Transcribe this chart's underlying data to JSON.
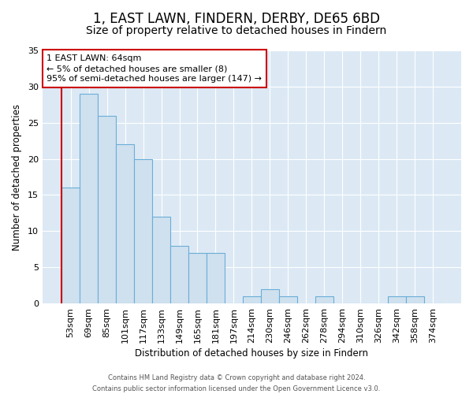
{
  "title": "1, EAST LAWN, FINDERN, DERBY, DE65 6BD",
  "subtitle": "Size of property relative to detached houses in Findern",
  "xlabel": "Distribution of detached houses by size in Findern",
  "ylabel": "Number of detached properties",
  "bar_labels": [
    "53sqm",
    "69sqm",
    "85sqm",
    "101sqm",
    "117sqm",
    "133sqm",
    "149sqm",
    "165sqm",
    "181sqm",
    "197sqm",
    "214sqm",
    "230sqm",
    "246sqm",
    "262sqm",
    "278sqm",
    "294sqm",
    "310sqm",
    "326sqm",
    "342sqm",
    "358sqm",
    "374sqm"
  ],
  "bar_values": [
    16,
    29,
    26,
    22,
    20,
    12,
    8,
    7,
    7,
    0,
    1,
    2,
    1,
    0,
    1,
    0,
    0,
    0,
    1,
    1,
    0
  ],
  "bar_color": "#cfe0ef",
  "bar_edge_color": "#6aaed6",
  "annotation_text": "1 EAST LAWN: 64sqm\n← 5% of detached houses are smaller (8)\n95% of semi-detached houses are larger (147) →",
  "vline_color": "#cc0000",
  "annotation_box_edge_color": "#cc0000",
  "ylim": [
    0,
    35
  ],
  "yticks": [
    0,
    5,
    10,
    15,
    20,
    25,
    30,
    35
  ],
  "background_color": "#dce9f5",
  "footer_line1": "Contains HM Land Registry data © Crown copyright and database right 2024.",
  "footer_line2": "Contains public sector information licensed under the Open Government Licence v3.0.",
  "title_fontsize": 12,
  "subtitle_fontsize": 10
}
